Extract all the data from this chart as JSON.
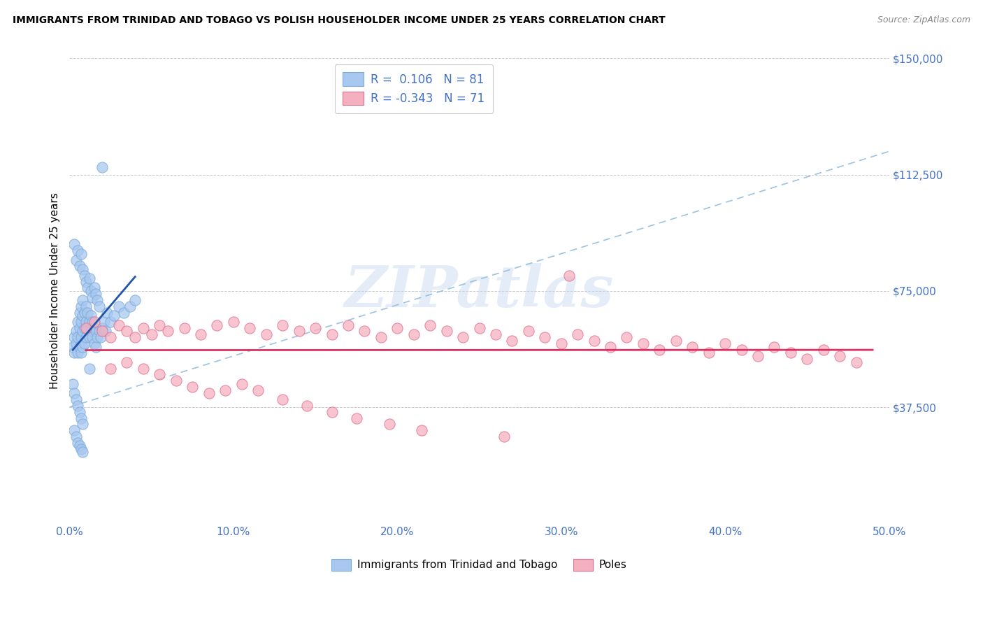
{
  "title": "IMMIGRANTS FROM TRINIDAD AND TOBAGO VS POLISH HOUSEHOLDER INCOME UNDER 25 YEARS CORRELATION CHART",
  "source": "Source: ZipAtlas.com",
  "ylabel": "Householder Income Under 25 years",
  "xlim": [
    0.0,
    0.5
  ],
  "ylim": [
    0,
    150000
  ],
  "yticks": [
    0,
    37500,
    75000,
    112500,
    150000
  ],
  "ytick_labels": [
    "",
    "$37,500",
    "$75,000",
    "$112,500",
    "$150,000"
  ],
  "xticks": [
    0.0,
    0.1,
    0.2,
    0.3,
    0.4,
    0.5
  ],
  "xtick_labels": [
    "0.0%",
    "10.0%",
    "20.0%",
    "30.0%",
    "40.0%",
    "50.0%"
  ],
  "series": [
    {
      "name": "Immigrants from Trinidad and Tobago",
      "R": 0.106,
      "N": 81,
      "dot_color": "#A8C8F0",
      "dot_edge": "#7AAAD8",
      "trend_color": "#2255AA"
    },
    {
      "name": "Poles",
      "R": -0.343,
      "N": 71,
      "dot_color": "#F5B0C0",
      "dot_edge": "#E07090",
      "trend_color": "#E03060"
    }
  ],
  "watermark": "ZIPatlas",
  "background_color": "#FFFFFF",
  "grid_color": "#BBBBBB",
  "axis_color": "#4472C4",
  "legend_R_color": "#4472C4",
  "dashed_line_color": "#90BBE0",
  "blue_x": [
    0.002,
    0.003,
    0.003,
    0.004,
    0.004,
    0.005,
    0.005,
    0.005,
    0.006,
    0.006,
    0.006,
    0.007,
    0.007,
    0.007,
    0.007,
    0.008,
    0.008,
    0.008,
    0.008,
    0.009,
    0.009,
    0.009,
    0.01,
    0.01,
    0.01,
    0.011,
    0.011,
    0.012,
    0.012,
    0.013,
    0.013,
    0.014,
    0.014,
    0.015,
    0.015,
    0.016,
    0.016,
    0.017,
    0.018,
    0.019,
    0.02,
    0.021,
    0.022,
    0.023,
    0.025,
    0.027,
    0.03,
    0.033,
    0.037,
    0.04,
    0.003,
    0.004,
    0.005,
    0.006,
    0.007,
    0.008,
    0.009,
    0.01,
    0.011,
    0.012,
    0.013,
    0.014,
    0.015,
    0.016,
    0.017,
    0.018,
    0.002,
    0.003,
    0.004,
    0.005,
    0.006,
    0.007,
    0.008,
    0.003,
    0.004,
    0.005,
    0.006,
    0.007,
    0.008,
    0.012,
    0.02
  ],
  "blue_y": [
    57000,
    60000,
    55000,
    62000,
    58000,
    65000,
    60000,
    55000,
    68000,
    63000,
    57000,
    70000,
    65000,
    60000,
    55000,
    72000,
    67000,
    62000,
    57000,
    68000,
    63000,
    58000,
    70000,
    65000,
    60000,
    68000,
    63000,
    65000,
    60000,
    67000,
    62000,
    65000,
    60000,
    63000,
    58000,
    62000,
    57000,
    60000,
    62000,
    60000,
    63000,
    65000,
    62000,
    68000,
    65000,
    67000,
    70000,
    68000,
    70000,
    72000,
    90000,
    85000,
    88000,
    83000,
    87000,
    82000,
    80000,
    78000,
    76000,
    79000,
    75000,
    73000,
    76000,
    74000,
    72000,
    70000,
    45000,
    42000,
    40000,
    38000,
    36000,
    34000,
    32000,
    30000,
    28000,
    26000,
    25000,
    24000,
    23000,
    50000,
    115000
  ],
  "pink_x": [
    0.01,
    0.015,
    0.02,
    0.025,
    0.03,
    0.035,
    0.04,
    0.045,
    0.05,
    0.055,
    0.06,
    0.07,
    0.08,
    0.09,
    0.1,
    0.11,
    0.12,
    0.13,
    0.14,
    0.15,
    0.16,
    0.17,
    0.18,
    0.19,
    0.2,
    0.21,
    0.22,
    0.23,
    0.24,
    0.25,
    0.26,
    0.27,
    0.28,
    0.29,
    0.3,
    0.31,
    0.32,
    0.33,
    0.34,
    0.35,
    0.36,
    0.37,
    0.38,
    0.39,
    0.4,
    0.41,
    0.42,
    0.43,
    0.44,
    0.45,
    0.46,
    0.47,
    0.48,
    0.025,
    0.035,
    0.045,
    0.055,
    0.065,
    0.075,
    0.085,
    0.095,
    0.105,
    0.115,
    0.13,
    0.145,
    0.16,
    0.175,
    0.195,
    0.215,
    0.265,
    0.305
  ],
  "pink_y": [
    63000,
    65000,
    62000,
    60000,
    64000,
    62000,
    60000,
    63000,
    61000,
    64000,
    62000,
    63000,
    61000,
    64000,
    65000,
    63000,
    61000,
    64000,
    62000,
    63000,
    61000,
    64000,
    62000,
    60000,
    63000,
    61000,
    64000,
    62000,
    60000,
    63000,
    61000,
    59000,
    62000,
    60000,
    58000,
    61000,
    59000,
    57000,
    60000,
    58000,
    56000,
    59000,
    57000,
    55000,
    58000,
    56000,
    54000,
    57000,
    55000,
    53000,
    56000,
    54000,
    52000,
    50000,
    52000,
    50000,
    48000,
    46000,
    44000,
    42000,
    43000,
    45000,
    43000,
    40000,
    38000,
    36000,
    34000,
    32000,
    30000,
    28000,
    80000
  ]
}
